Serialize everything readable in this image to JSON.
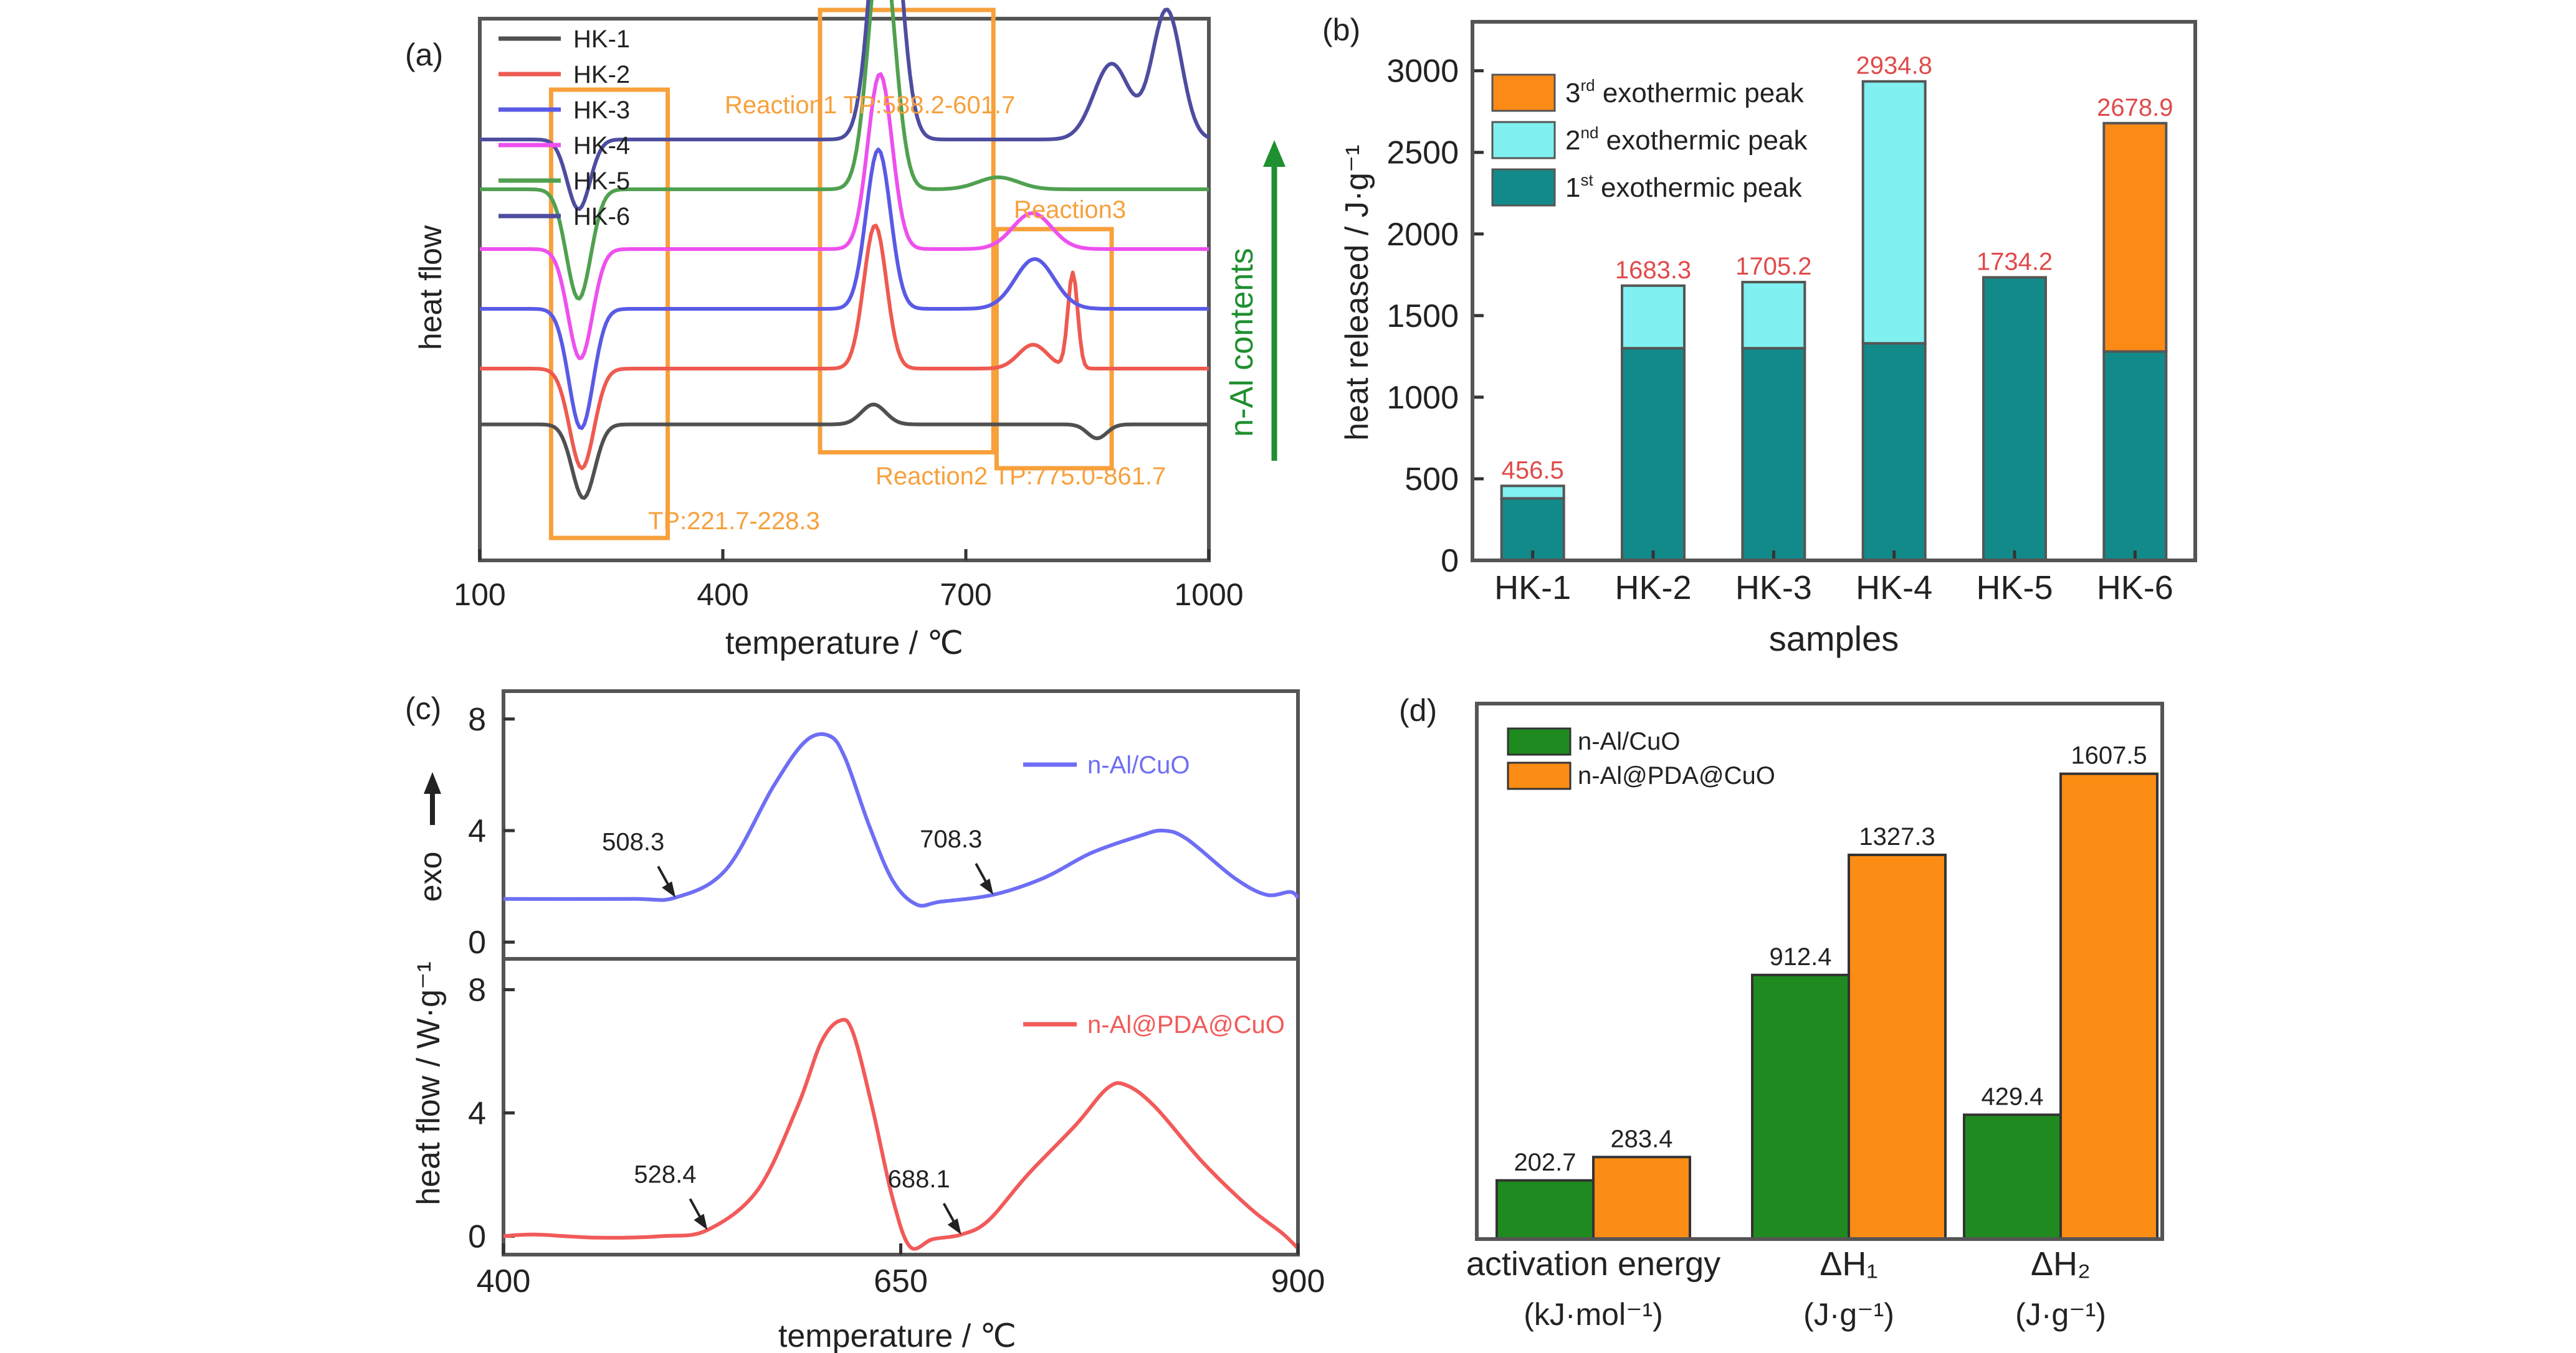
{
  "colors": {
    "HK-1": "#505050",
    "HK-2": "#ee5a50",
    "HK-3": "#5a5ae6",
    "HK-4": "#ee50ee",
    "HK-5": "#50a050",
    "HK-6": "#4d4da0",
    "highlight_box": "#f7a03c",
    "peak1": "#138a8a",
    "peak2": "#80f0f0",
    "peak3": "#fb8a16",
    "value_label": "#e04a4a",
    "nal_cuo": "#6e6ef5",
    "nal_pda_cuo": "#f25a5a",
    "bar_green": "#1f8a1f",
    "bar_orange": "#fb8c14",
    "arrow_green": "#1f8f2f"
  },
  "chart_data": [
    {
      "panel_label": "(a)",
      "type": "line",
      "xlabel": "temperature / ℃",
      "ylabel": "heat flow",
      "xlim": [
        100,
        1000
      ],
      "xticks": [
        100,
        400,
        700,
        1000
      ],
      "xtick_labels": [
        "100",
        "400",
        "700",
        "1000"
      ],
      "legend": {
        "placement": "top-left",
        "entries": [
          "HK-1",
          "HK-2",
          "HK-3",
          "HK-4",
          "HK-5",
          "HK-6"
        ]
      },
      "series": [
        {
          "name": "HK-1",
          "baseline": 0.62,
          "peaks": [
            [
              228,
              -0.37,
              14
            ],
            [
              586,
              0.1,
              15
            ],
            [
              862,
              -0.07,
              12
            ]
          ]
        },
        {
          "name": "HK-2",
          "baseline": 0.9,
          "peaks": [
            [
              226,
              -0.5,
              15
            ],
            [
              588,
              0.72,
              14
            ],
            [
              783,
              0.12,
              18
            ],
            [
              832,
              0.48,
              6
            ]
          ]
        },
        {
          "name": "HK-3",
          "baseline": 1.2,
          "peaks": [
            [
              225,
              -0.6,
              15
            ],
            [
              592,
              0.8,
              15
            ],
            [
              785,
              0.25,
              24
            ]
          ]
        },
        {
          "name": "HK-4",
          "baseline": 1.5,
          "peaks": [
            [
              224,
              -0.55,
              15
            ],
            [
              594,
              0.88,
              15
            ],
            [
              782,
              0.18,
              24
            ]
          ]
        },
        {
          "name": "HK-5",
          "baseline": 1.8,
          "peaks": [
            [
              222,
              -0.55,
              15
            ],
            [
              596,
              1.28,
              16
            ],
            [
              740,
              0.06,
              25
            ]
          ]
        },
        {
          "name": "HK-6",
          "baseline": 2.05,
          "peaks": [
            [
              222,
              -0.35,
              14
            ],
            [
              601,
              1.55,
              17
            ],
            [
              880,
              0.38,
              22
            ],
            [
              948,
              0.65,
              18
            ]
          ]
        }
      ],
      "annotations": {
        "box1": "TP:221.7-228.3",
        "box2": "Reaction1 TP:588.2-601.7",
        "box3": "Reaction2 TP:775.0-861.7",
        "reaction3": "Reaction3",
        "arrow": "n-Al contents"
      }
    },
    {
      "panel_label": "(b)",
      "type": "bar",
      "stacked": true,
      "xlabel": "samples",
      "ylabel": "heat released / J·g⁻¹",
      "ylim": [
        0,
        3300
      ],
      "yticks": [
        0,
        500,
        1000,
        1500,
        2000,
        2500,
        3000
      ],
      "categories": [
        "HK-1",
        "HK-2",
        "HK-3",
        "HK-4",
        "HK-5",
        "HK-6"
      ],
      "series": [
        {
          "name": "1st exothermic peak",
          "values": [
            380,
            1300,
            1300,
            1330,
            1734.2,
            1280
          ]
        },
        {
          "name": "2nd exothermic peak",
          "values": [
            76.5,
            383.3,
            405.2,
            1604.8,
            0,
            0
          ]
        },
        {
          "name": "3rd exothermic peak",
          "values": [
            0,
            0,
            0,
            0,
            0,
            1398.9
          ]
        }
      ],
      "totals": [
        456.5,
        1683.3,
        1705.2,
        2934.8,
        1734.2,
        2678.9
      ],
      "total_labels": [
        "456.5",
        "1683.3",
        "1705.2",
        "2934.8",
        "1734.2",
        "2678.9"
      ],
      "legend": {
        "placement": "top-left",
        "entries": [
          {
            "series": "3rd exothermic peak",
            "num": "3",
            "sup": "rd",
            "text": " exothermic peak"
          },
          {
            "series": "2nd exothermic peak",
            "num": "2",
            "sup": "nd",
            "text": " exothermic peak"
          },
          {
            "series": "1st exothermic peak",
            "num": "1",
            "sup": "st",
            "text": " exothermic peak"
          }
        ]
      }
    },
    {
      "panel_label": "(c)",
      "type": "line",
      "xlabel": "temperature / ℃",
      "ylabel": "heat flow / W·g⁻¹",
      "exo_label": "exo",
      "xlim": [
        400,
        900
      ],
      "xticks": [
        400,
        650,
        900
      ],
      "xtick_labels": [
        "400",
        "650",
        "900"
      ],
      "ylim": [
        -0.6,
        9
      ],
      "yticks": [
        0,
        4,
        8
      ],
      "subplots": [
        {
          "series": "n-Al/CuO",
          "points": [
            [
              400,
              1.55
            ],
            [
              480,
              1.55
            ],
            [
              508.3,
              1.6
            ],
            [
              540,
              2.6
            ],
            [
              570,
              5.6
            ],
            [
              590,
              7.2
            ],
            [
              605,
              7.4
            ],
            [
              615,
              6.6
            ],
            [
              630,
              4.2
            ],
            [
              645,
              2.2
            ],
            [
              660,
              1.35
            ],
            [
              675,
              1.45
            ],
            [
              708.3,
              1.7
            ],
            [
              740,
              2.3
            ],
            [
              770,
              3.2
            ],
            [
              800,
              3.8
            ],
            [
              815,
              4.0
            ],
            [
              830,
              3.7
            ],
            [
              860,
              2.3
            ],
            [
              880,
              1.7
            ],
            [
              895,
              1.8
            ],
            [
              900,
              1.6
            ]
          ],
          "markers": [
            {
              "x": 508.3,
              "label": "508.3"
            },
            {
              "x": 708.3,
              "label": "708.3"
            }
          ]
        },
        {
          "series": "n-Al@PDA@CuO",
          "points": [
            [
              400,
              0.0
            ],
            [
              420,
              0.05
            ],
            [
              460,
              -0.05
            ],
            [
              500,
              0.0
            ],
            [
              528.4,
              0.2
            ],
            [
              560,
              1.5
            ],
            [
              585,
              4.2
            ],
            [
              600,
              6.3
            ],
            [
              612,
              7.0
            ],
            [
              620,
              6.6
            ],
            [
              632,
              4.2
            ],
            [
              645,
              1.2
            ],
            [
              656,
              -0.35
            ],
            [
              670,
              -0.1
            ],
            [
              688.1,
              0.05
            ],
            [
              705,
              0.5
            ],
            [
              730,
              2.0
            ],
            [
              760,
              3.6
            ],
            [
              780,
              4.8
            ],
            [
              792,
              4.9
            ],
            [
              810,
              4.2
            ],
            [
              840,
              2.4
            ],
            [
              870,
              0.9
            ],
            [
              890,
              0.1
            ],
            [
              900,
              -0.4
            ]
          ],
          "markers": [
            {
              "x": 528.4,
              "label": "528.4"
            },
            {
              "x": 688.1,
              "label": "688.1"
            }
          ]
        }
      ]
    },
    {
      "panel_label": "(d)",
      "type": "bar",
      "grouped": true,
      "ylim": [
        0,
        1850
      ],
      "categories": [
        {
          "line1": "activation energy",
          "line2": "(kJ·mol⁻¹)"
        },
        {
          "line1": "ΔH₁",
          "line2": "(J·g⁻¹)"
        },
        {
          "line1": "ΔH₂",
          "line2": "(J·g⁻¹)"
        }
      ],
      "series": [
        {
          "name": "n-Al/CuO",
          "values": [
            202.7,
            912.4,
            429.4
          ],
          "labels": [
            "202.7",
            "912.4",
            "429.4"
          ]
        },
        {
          "name": "n-Al@PDA@CuO",
          "values": [
            283.4,
            1327.3,
            1607.5
          ],
          "labels": [
            "283.4",
            "1327.3",
            "1607.5"
          ]
        }
      ],
      "legend": {
        "placement": "top-left"
      }
    }
  ]
}
